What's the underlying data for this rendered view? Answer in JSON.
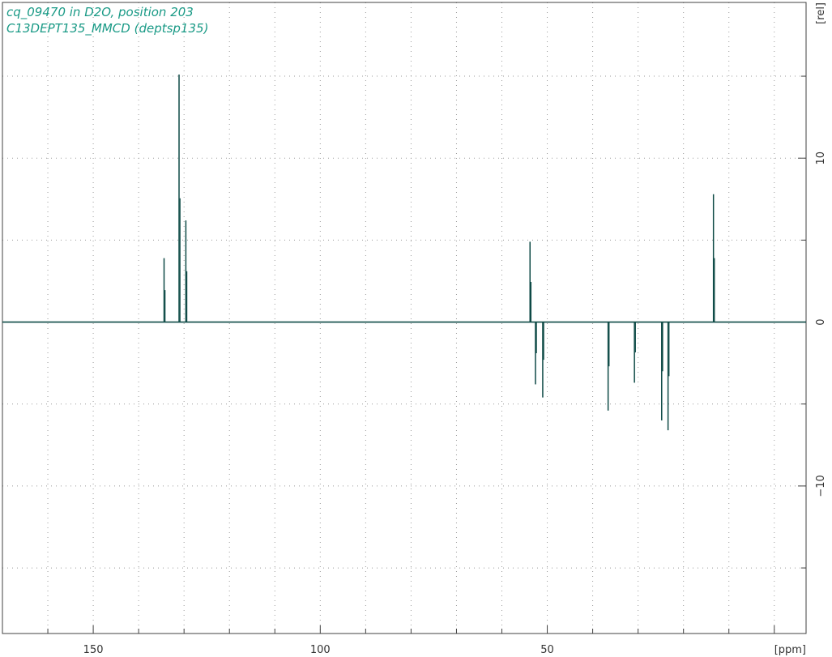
{
  "title_lines": [
    "cq_09470 in D2O, position 203",
    "C13DEPT135_MMCD (deptsp135)"
  ],
  "colors": {
    "spectrum": "#0e4a46",
    "title": "#1a9a86",
    "grid": "#9a9a9a",
    "axis": "#404040"
  },
  "chart_data": {
    "type": "line",
    "xlabel": "[ppm]",
    "ylabel": "[rel]",
    "x_reversed": true,
    "xlim": [
      170,
      -7
    ],
    "ylim": [
      -19,
      19.5
    ],
    "xticks": [
      150,
      100,
      50,
      0
    ],
    "x_tick_labels": [
      "150",
      "100",
      "50"
    ],
    "yticks": [
      10,
      0,
      -10
    ],
    "y_tick_labels": [
      "10",
      "0",
      "−10"
    ],
    "grid": true,
    "baseline_y": 0,
    "peaks": [
      {
        "x": 134.4,
        "y": 3.9
      },
      {
        "x": 131.1,
        "y": 15.1
      },
      {
        "x": 129.6,
        "y": 6.2
      },
      {
        "x": 53.8,
        "y": 4.9
      },
      {
        "x": 52.6,
        "y": -3.8
      },
      {
        "x": 51.0,
        "y": -4.6
      },
      {
        "x": 36.6,
        "y": -5.4
      },
      {
        "x": 30.8,
        "y": -3.7
      },
      {
        "x": 24.8,
        "y": -6.0
      },
      {
        "x": 23.4,
        "y": -6.6
      },
      {
        "x": 13.4,
        "y": 7.8
      }
    ]
  }
}
